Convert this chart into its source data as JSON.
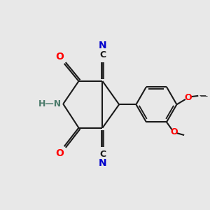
{
  "bg_color": "#e8e8e8",
  "bond_color": "#1a1a1a",
  "O_color": "#ff0000",
  "CN_color": "#0000cc",
  "C_label_color": "#1a1a1a",
  "N_color": "#4a7a6a",
  "lw": 1.5,
  "xlim": [
    0,
    10
  ],
  "ylim": [
    0,
    10
  ]
}
